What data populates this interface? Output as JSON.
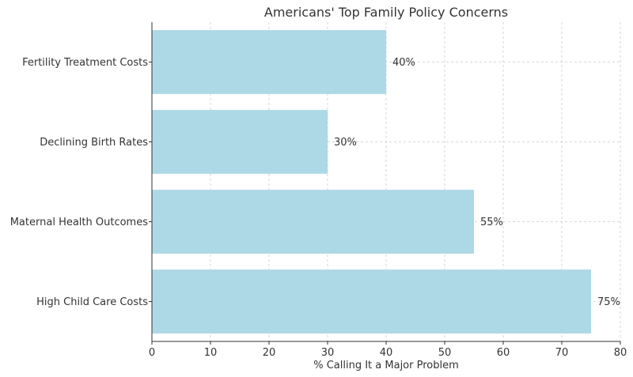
{
  "chart_data": {
    "type": "bar",
    "orientation": "horizontal",
    "title": "Americans' Top Family Policy Concerns",
    "xlabel": "% Calling It a Major Problem",
    "ylabel": "",
    "xlim": [
      0,
      80
    ],
    "xticks": [
      0,
      10,
      20,
      30,
      40,
      50,
      60,
      70,
      80
    ],
    "categories": [
      "High Child Care Costs",
      "Maternal Health Outcomes",
      "Declining Birth Rates",
      "Fertility Treatment Costs"
    ],
    "values": [
      75,
      55,
      30,
      40
    ],
    "data_labels": [
      "75%",
      "55%",
      "30%",
      "40%"
    ],
    "bar_color": "#add8e6",
    "grid": true
  }
}
